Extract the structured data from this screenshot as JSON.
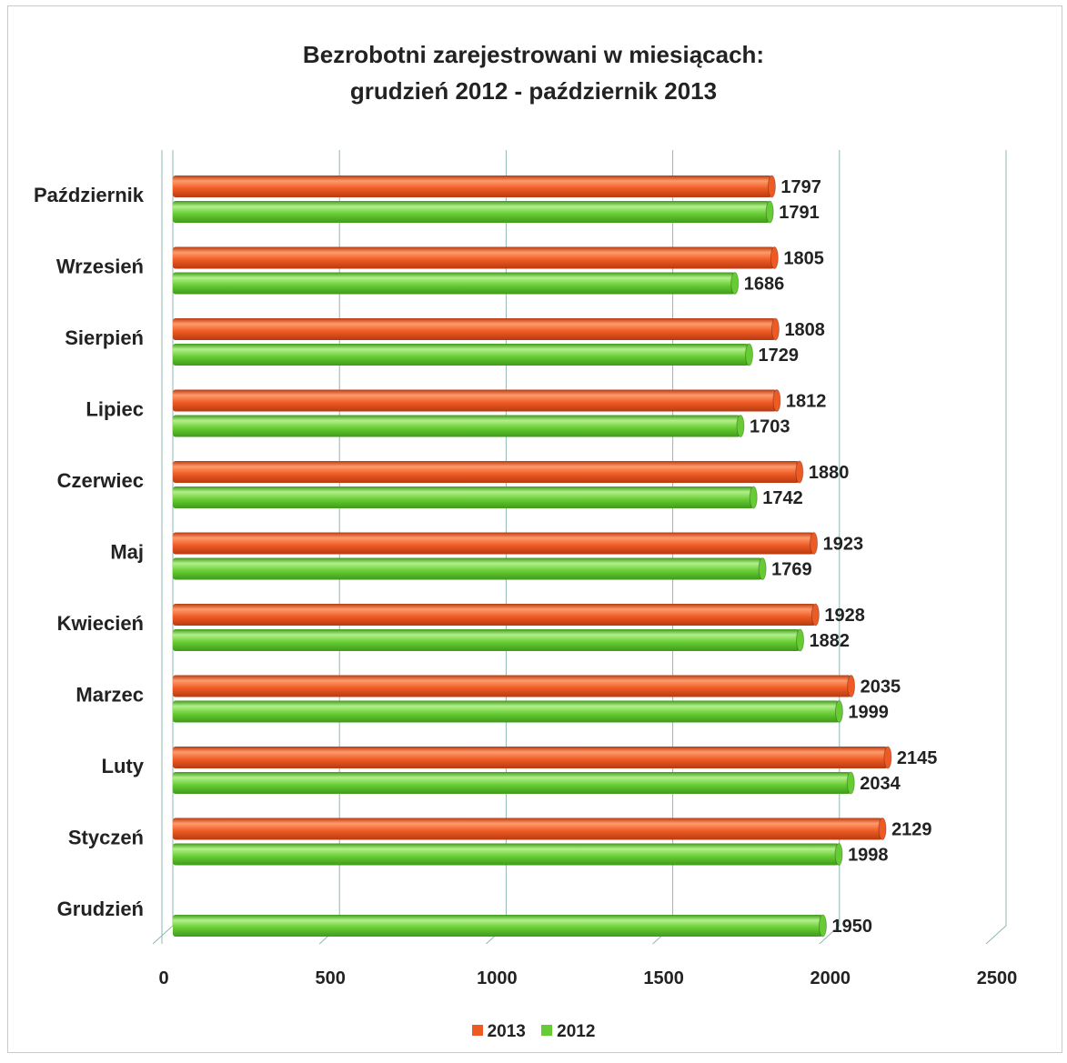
{
  "chart_data": {
    "type": "bar",
    "orientation": "horizontal",
    "title_line1": "Bezrobotni zarejestrowani w miesiącach:",
    "title_line2": "grudzień 2012 - październik 2013",
    "categories": [
      "Październik",
      "Wrzesień",
      "Sierpień",
      "Lipiec",
      "Czerwiec",
      "Maj",
      "Kwiecień",
      "Marzec",
      "Luty",
      "Styczeń",
      "Grudzień"
    ],
    "series": [
      {
        "name": "2013",
        "color": "#ee5a24",
        "values": [
          1797,
          1805,
          1808,
          1812,
          1880,
          1923,
          1928,
          2035,
          2145,
          2129,
          null
        ]
      },
      {
        "name": "2012",
        "color": "#66cc33",
        "values": [
          1791,
          1686,
          1729,
          1703,
          1742,
          1769,
          1882,
          1999,
          2034,
          1998,
          1950
        ]
      }
    ],
    "x_ticks": [
      "0",
      "500",
      "1000",
      "1500",
      "2000",
      "2500"
    ],
    "xlim": [
      0,
      2500
    ],
    "grid": true,
    "legend_position": "bottom"
  }
}
